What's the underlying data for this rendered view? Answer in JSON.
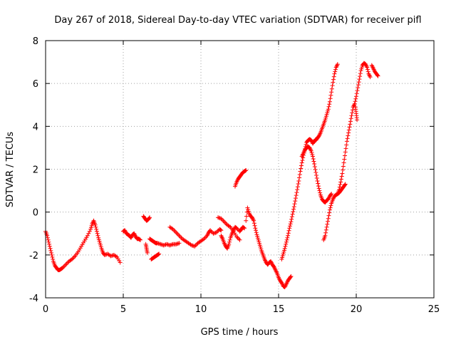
{
  "chart_data": {
    "type": "scatter",
    "title": "Day 267 of 2018, Sidereal Day-to-day VTEC variation (SDTVAR) for receiver pifl",
    "xlabel": "GPS time / hours",
    "ylabel": "SDTVAR / TECUs",
    "xlim": [
      0,
      25
    ],
    "ylim": [
      -4,
      8
    ],
    "xticks": [
      0,
      5,
      10,
      15,
      20,
      25
    ],
    "yticks": [
      -4,
      -2,
      0,
      2,
      4,
      6,
      8
    ],
    "xtick_labels": [
      "0",
      "5",
      "10",
      "15",
      "20",
      "25"
    ],
    "ytick_labels": [
      "-4",
      "-2",
      "0",
      "2",
      "4",
      "6",
      "8"
    ],
    "grid": true,
    "marker": "+",
    "color": "#ff0000",
    "series": [
      {
        "name": "SDTVAR",
        "segments": [
          {
            "x": [
              0.0,
              0.1,
              0.2,
              0.3,
              0.4,
              0.5,
              0.6,
              0.7,
              0.8,
              0.9,
              1.0,
              1.1,
              1.3,
              1.5,
              1.7,
              1.9,
              2.1,
              2.3,
              2.5,
              2.7,
              2.9,
              3.0,
              3.1,
              3.2,
              3.3,
              3.4,
              3.5,
              3.6,
              3.7,
              3.8,
              4.0,
              4.2,
              4.4,
              4.6,
              4.8
            ],
            "y": [
              -0.9,
              -1.1,
              -1.4,
              -1.7,
              -2.0,
              -2.3,
              -2.5,
              -2.6,
              -2.7,
              -2.7,
              -2.65,
              -2.6,
              -2.45,
              -2.3,
              -2.2,
              -2.05,
              -1.85,
              -1.6,
              -1.35,
              -1.1,
              -0.8,
              -0.55,
              -0.4,
              -0.6,
              -0.9,
              -1.2,
              -1.45,
              -1.7,
              -1.9,
              -2.0,
              -1.95,
              -2.05,
              -2.0,
              -2.1,
              -2.35
            ]
          },
          {
            "x": [
              5.0,
              5.1,
              5.2,
              5.3,
              5.4,
              5.5,
              5.6,
              5.7,
              5.8,
              5.9,
              6.0,
              6.1
            ],
            "y": [
              -0.9,
              -0.85,
              -1.0,
              -1.05,
              -1.1,
              -1.2,
              -1.05,
              -1.0,
              -1.15,
              -1.25,
              -1.25,
              -1.3
            ]
          },
          {
            "x": [
              6.3,
              6.4,
              6.5,
              6.6,
              6.7
            ],
            "y": [
              -0.2,
              -0.3,
              -0.4,
              -0.35,
              -0.25
            ]
          },
          {
            "x": [
              6.45,
              6.5,
              6.55
            ],
            "y": [
              -1.5,
              -1.7,
              -1.9
            ]
          },
          {
            "x": [
              6.7,
              6.8,
              6.9,
              7.0,
              7.1,
              7.2,
              7.4,
              7.6,
              7.8,
              8.0,
              8.2,
              8.4,
              8.6
            ],
            "y": [
              -1.25,
              -1.3,
              -1.35,
              -1.4,
              -1.45,
              -1.45,
              -1.5,
              -1.55,
              -1.5,
              -1.55,
              -1.5,
              -1.5,
              -1.45
            ]
          },
          {
            "x": [
              6.8,
              6.9,
              7.0,
              7.1,
              7.2,
              7.3
            ],
            "y": [
              -2.2,
              -2.15,
              -2.1,
              -2.05,
              -2.0,
              -1.95
            ]
          },
          {
            "x": [
              8.0,
              8.2,
              8.4,
              8.6,
              8.8,
              9.0,
              9.2,
              9.4,
              9.6,
              9.8,
              10.0,
              10.2,
              10.4,
              10.5,
              10.6,
              10.8,
              11.0,
              11.2,
              11.3
            ],
            "y": [
              -0.7,
              -0.8,
              -0.95,
              -1.1,
              -1.25,
              -1.35,
              -1.45,
              -1.55,
              -1.6,
              -1.45,
              -1.35,
              -1.25,
              -1.1,
              -0.95,
              -0.85,
              -1.0,
              -0.95,
              -0.8,
              -0.85
            ]
          },
          {
            "x": [
              11.3,
              11.4,
              11.5,
              11.6,
              11.7,
              11.8,
              11.9,
              12.0,
              12.1,
              12.2,
              12.3,
              12.5,
              12.6,
              12.7,
              12.8
            ],
            "y": [
              -1.1,
              -1.25,
              -1.45,
              -1.6,
              -1.7,
              -1.5,
              -1.2,
              -1.0,
              -0.85,
              -0.7,
              -0.75,
              -0.9,
              -0.8,
              -0.7,
              -0.75
            ]
          },
          {
            "x": [
              11.1,
              11.3,
              11.5,
              11.7,
              11.9,
              12.1,
              12.3,
              12.5
            ],
            "y": [
              -0.25,
              -0.3,
              -0.45,
              -0.6,
              -0.7,
              -0.9,
              -1.15,
              -1.3
            ]
          },
          {
            "x": [
              12.2,
              12.3,
              12.4,
              12.5,
              12.6,
              12.7,
              12.8,
              12.9
            ],
            "y": [
              1.2,
              1.4,
              1.55,
              1.65,
              1.75,
              1.85,
              1.9,
              1.95
            ]
          },
          {
            "x": [
              12.9,
              13.0,
              13.1,
              13.2,
              13.3,
              13.4,
              13.5,
              13.6,
              13.7,
              13.8,
              13.9,
              14.0,
              14.1,
              14.2,
              14.3,
              14.4,
              14.5,
              14.6,
              14.7,
              14.8,
              14.9,
              15.0,
              15.1,
              15.2,
              15.3,
              15.4,
              15.5,
              15.6,
              15.7,
              15.8
            ],
            "y": [
              -0.4,
              0.2,
              -0.05,
              -0.2,
              -0.25,
              -0.4,
              -0.75,
              -1.05,
              -1.3,
              -1.55,
              -1.8,
              -2.0,
              -2.2,
              -2.35,
              -2.45,
              -2.35,
              -2.3,
              -2.45,
              -2.55,
              -2.7,
              -2.85,
              -3.05,
              -3.2,
              -3.3,
              -3.45,
              -3.5,
              -3.35,
              -3.2,
              -3.1,
              -3.0
            ]
          },
          {
            "x": [
              15.2,
              15.3,
              15.4,
              15.5,
              15.6,
              15.7,
              15.8,
              15.9,
              16.0,
              16.1,
              16.2,
              16.3,
              16.4,
              16.5,
              16.6,
              16.7,
              16.8,
              16.9,
              17.0,
              17.1,
              17.2,
              17.3,
              17.4
            ],
            "y": [
              -2.2,
              -1.95,
              -1.7,
              -1.4,
              -1.1,
              -0.75,
              -0.45,
              -0.1,
              0.25,
              0.65,
              1.05,
              1.45,
              1.9,
              2.3,
              2.65,
              2.95,
              3.25,
              3.35,
              3.4,
              3.35,
              3.2,
              3.3,
              3.4
            ]
          },
          {
            "x": [
              16.5,
              16.6,
              16.7,
              16.8,
              16.9,
              17.0,
              17.1,
              17.2,
              17.3,
              17.4,
              17.5,
              17.6,
              17.7,
              17.8,
              17.9,
              18.0,
              18.1,
              18.2,
              18.3,
              18.4
            ],
            "y": [
              2.6,
              2.75,
              2.9,
              3.0,
              3.05,
              3.0,
              2.85,
              2.6,
              2.25,
              1.85,
              1.45,
              1.1,
              0.8,
              0.6,
              0.5,
              0.45,
              0.55,
              0.6,
              0.75,
              0.85
            ]
          },
          {
            "x": [
              17.4,
              17.5,
              17.6,
              17.7,
              17.8,
              17.9,
              18.0,
              18.1,
              18.2,
              18.3,
              18.4,
              18.5,
              18.6,
              18.7,
              18.8
            ],
            "y": [
              3.35,
              3.45,
              3.55,
              3.7,
              3.9,
              4.1,
              4.3,
              4.55,
              4.8,
              5.15,
              5.6,
              6.05,
              6.45,
              6.75,
              6.9
            ]
          },
          {
            "x": [
              17.9,
              18.0,
              18.1,
              18.2,
              18.3,
              18.4,
              18.5,
              18.6,
              18.7,
              18.8,
              18.9,
              19.0,
              19.1,
              19.2,
              19.3
            ],
            "y": [
              -1.3,
              -1.1,
              -0.7,
              -0.3,
              0.1,
              0.4,
              0.6,
              0.75,
              0.8,
              0.85,
              0.9,
              1.0,
              1.1,
              1.2,
              1.3
            ]
          },
          {
            "x": [
              18.8,
              18.9,
              19.0,
              19.1,
              19.2,
              19.3,
              19.4,
              19.5,
              19.6,
              19.7,
              19.8,
              19.9,
              20.0,
              20.1,
              20.2,
              20.3,
              20.4,
              20.5,
              20.6,
              20.7,
              20.8,
              20.9
            ],
            "y": [
              0.85,
              1.05,
              1.4,
              1.8,
              2.3,
              2.8,
              3.3,
              3.7,
              4.1,
              4.5,
              4.9,
              5.05,
              5.4,
              5.8,
              6.2,
              6.6,
              6.85,
              6.95,
              6.9,
              6.75,
              6.45,
              6.3
            ]
          },
          {
            "x": [
              19.95,
              20.0,
              20.05
            ],
            "y": [
              4.9,
              4.6,
              4.3
            ]
          },
          {
            "x": [
              21.0,
              21.1,
              21.2,
              21.3,
              21.4
            ],
            "y": [
              6.85,
              6.7,
              6.55,
              6.45,
              6.35
            ]
          }
        ]
      }
    ]
  }
}
